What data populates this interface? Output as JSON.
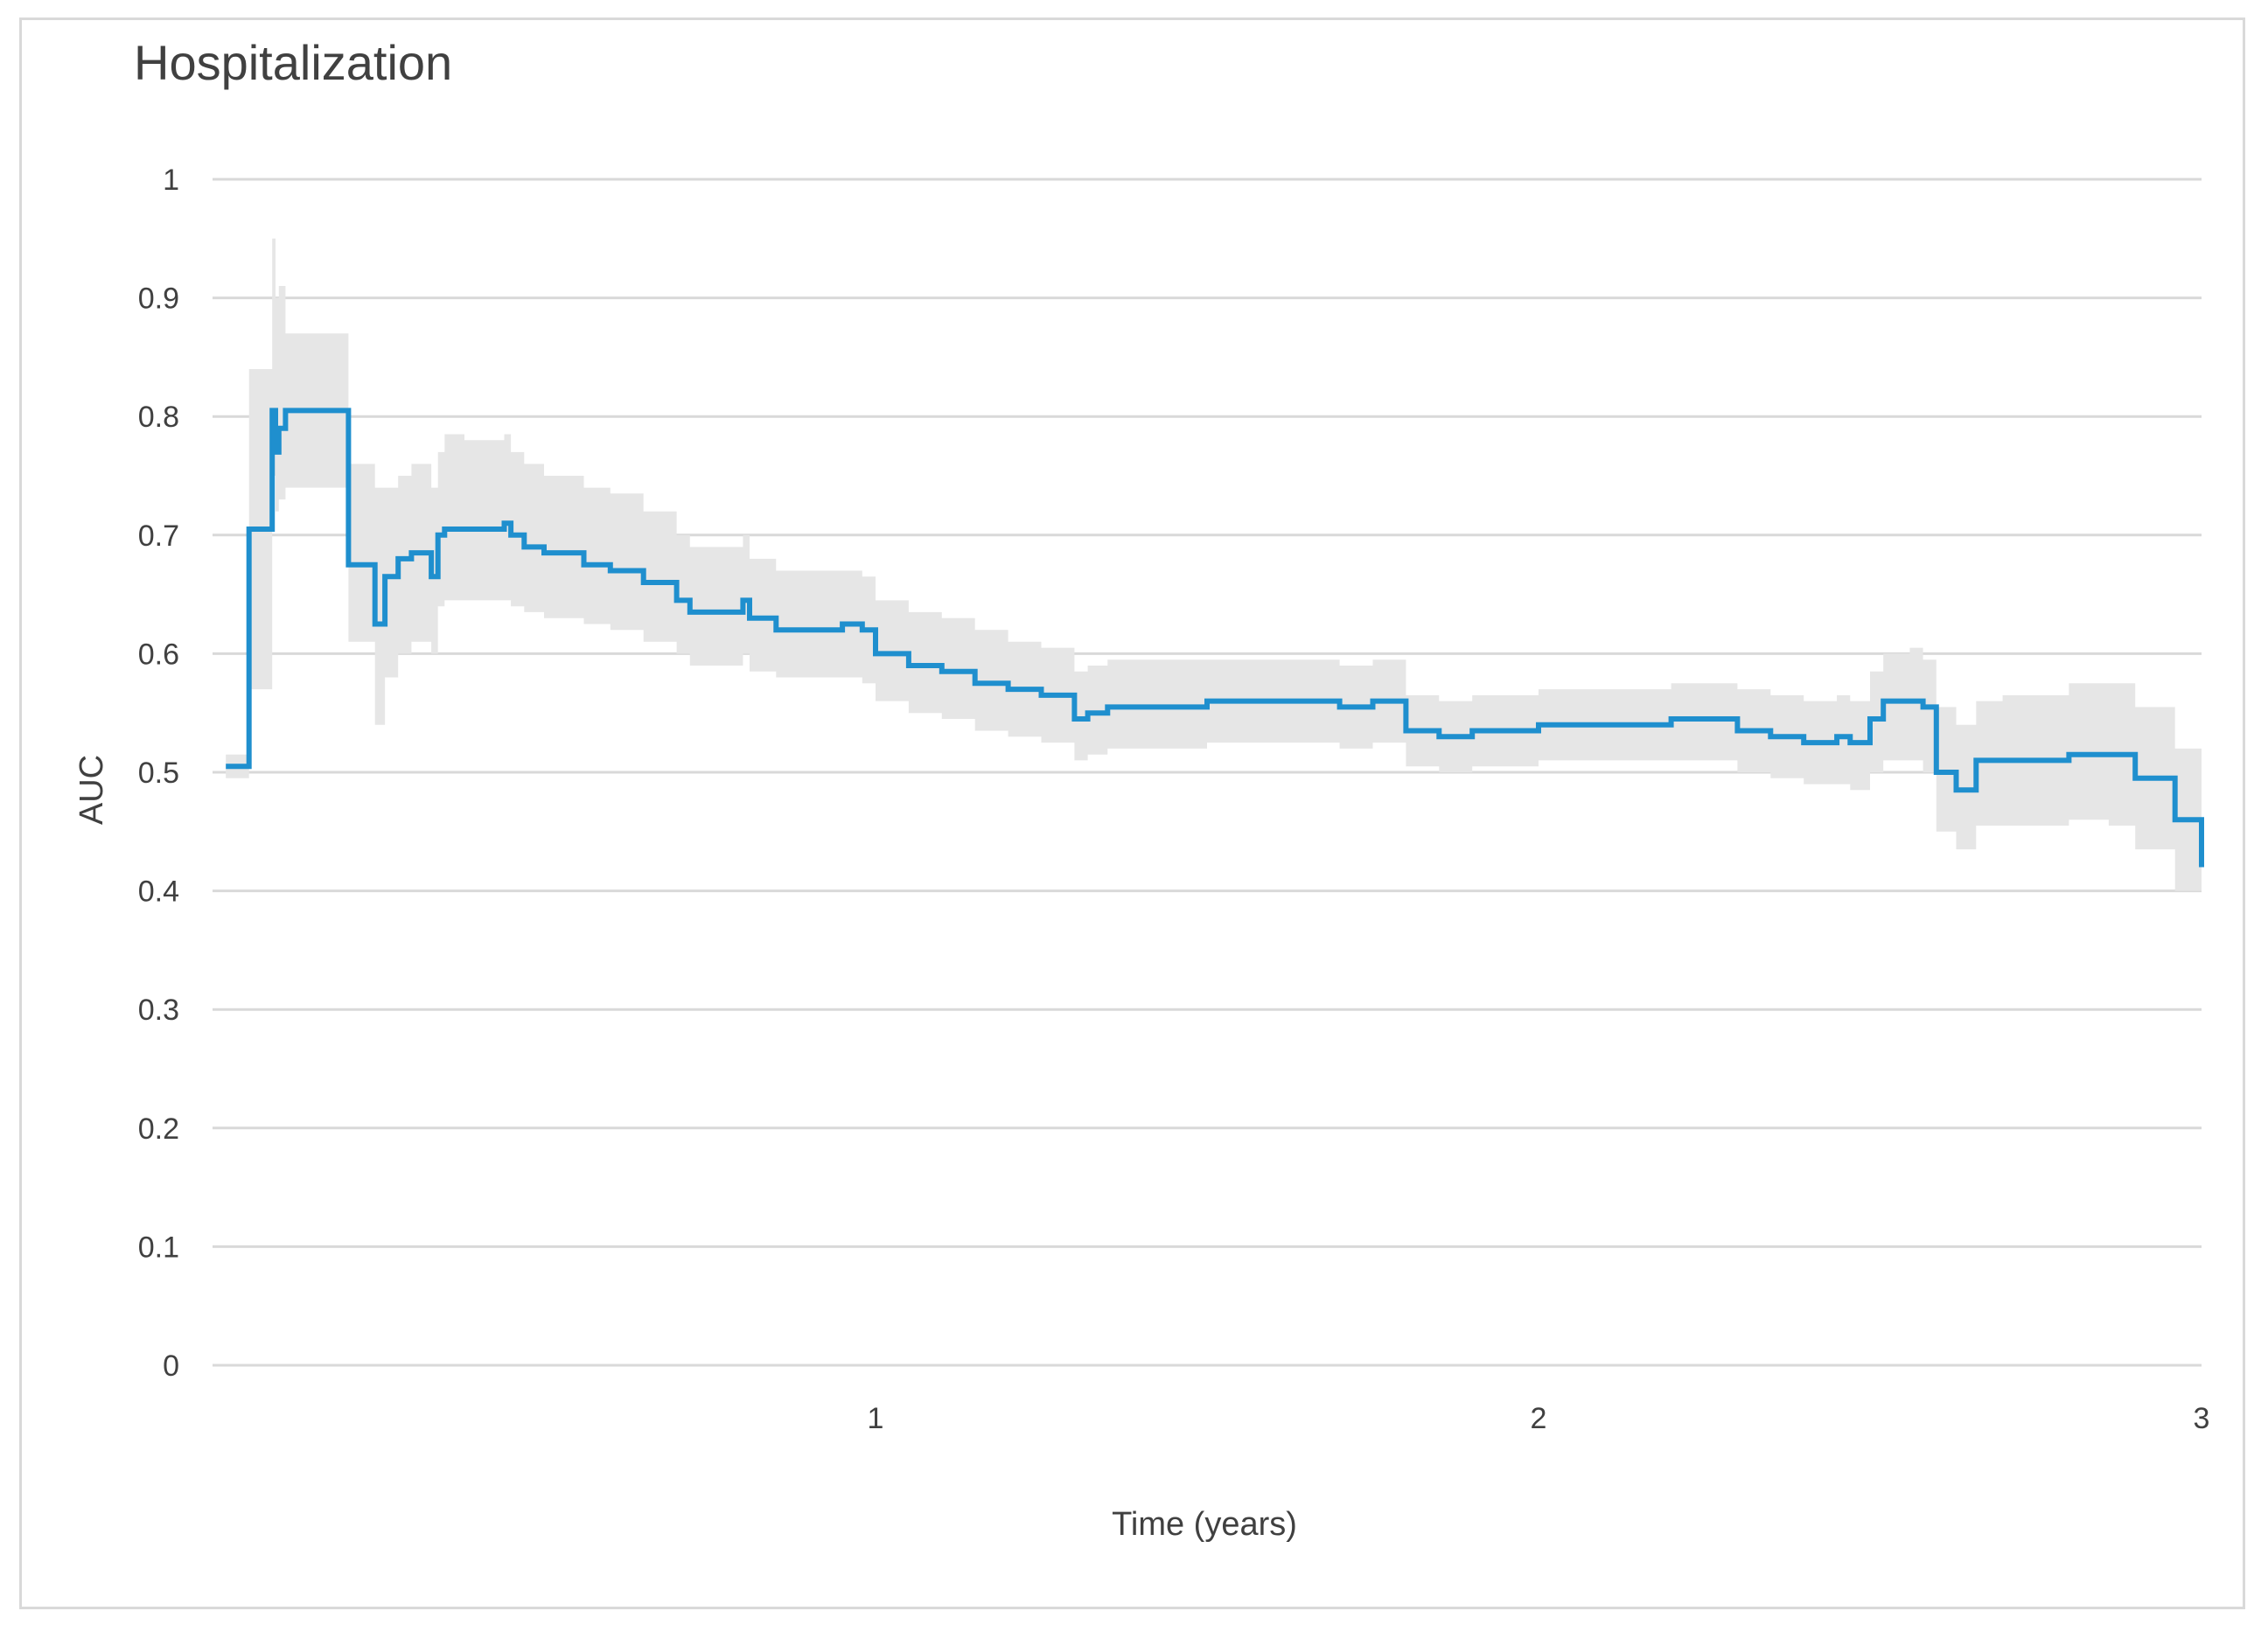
{
  "chart_data": {
    "type": "line",
    "title": "Hospitalization",
    "xlabel": "Time (years)",
    "ylabel": "AUC",
    "xlim": [
      0,
      3
    ],
    "ylim": [
      0,
      1
    ],
    "x_ticks": [
      1,
      2,
      3
    ],
    "y_ticks": [
      0,
      0.1,
      0.2,
      0.3,
      0.4,
      0.5,
      0.6,
      0.7,
      0.8,
      0.9,
      1
    ],
    "grid": "horizontal",
    "legend": "none",
    "colors": {
      "line": "#1f8fce",
      "band": "#e6e6e6",
      "grid": "#d9d9d9"
    },
    "series": [
      {
        "style": "step",
        "x": [
          0.02,
          0.05,
          0.055,
          0.08,
          0.09,
          0.095,
          0.1,
          0.11,
          0.12,
          0.2,
          0.205,
          0.24,
          0.245,
          0.26,
          0.28,
          0.3,
          0.33,
          0.34,
          0.35,
          0.38,
          0.4,
          0.44,
          0.45,
          0.47,
          0.5,
          0.56,
          0.6,
          0.65,
          0.7,
          0.72,
          0.75,
          0.8,
          0.81,
          0.85,
          0.88,
          0.92,
          0.95,
          0.98,
          1.0,
          1.05,
          1.1,
          1.15,
          1.2,
          1.25,
          1.3,
          1.32,
          1.35,
          1.4,
          1.5,
          1.6,
          1.7,
          1.75,
          1.8,
          1.85,
          1.9,
          2.0,
          2.1,
          2.2,
          2.3,
          2.35,
          2.4,
          2.45,
          2.47,
          2.5,
          2.52,
          2.56,
          2.58,
          2.6,
          2.63,
          2.66,
          2.7,
          2.8,
          2.86,
          2.9,
          2.96,
          3.0
        ],
        "y": [
          0.505,
          0.505,
          0.705,
          0.705,
          0.805,
          0.77,
          0.79,
          0.805,
          0.805,
          0.805,
          0.675,
          0.675,
          0.625,
          0.665,
          0.68,
          0.685,
          0.665,
          0.7,
          0.705,
          0.705,
          0.705,
          0.71,
          0.7,
          0.69,
          0.685,
          0.675,
          0.67,
          0.66,
          0.645,
          0.635,
          0.635,
          0.645,
          0.63,
          0.62,
          0.62,
          0.62,
          0.625,
          0.62,
          0.6,
          0.59,
          0.585,
          0.575,
          0.57,
          0.565,
          0.545,
          0.55,
          0.555,
          0.555,
          0.56,
          0.56,
          0.555,
          0.56,
          0.535,
          0.53,
          0.535,
          0.54,
          0.54,
          0.545,
          0.535,
          0.53,
          0.525,
          0.53,
          0.525,
          0.545,
          0.56,
          0.56,
          0.555,
          0.5,
          0.485,
          0.51,
          0.51,
          0.515,
          0.515,
          0.495,
          0.46,
          0.42
        ],
        "lower": [
          0.495,
          0.495,
          0.57,
          0.57,
          0.75,
          0.72,
          0.73,
          0.74,
          0.74,
          0.74,
          0.61,
          0.61,
          0.54,
          0.58,
          0.6,
          0.61,
          0.6,
          0.64,
          0.645,
          0.645,
          0.645,
          0.645,
          0.64,
          0.635,
          0.63,
          0.625,
          0.62,
          0.61,
          0.6,
          0.59,
          0.59,
          0.6,
          0.585,
          0.58,
          0.58,
          0.58,
          0.58,
          0.575,
          0.56,
          0.55,
          0.545,
          0.535,
          0.53,
          0.525,
          0.51,
          0.515,
          0.52,
          0.52,
          0.525,
          0.525,
          0.52,
          0.525,
          0.505,
          0.5,
          0.505,
          0.51,
          0.51,
          0.51,
          0.5,
          0.495,
          0.49,
          0.49,
          0.485,
          0.5,
          0.51,
          0.51,
          0.5,
          0.45,
          0.435,
          0.455,
          0.455,
          0.46,
          0.455,
          0.435,
          0.4,
          0.365
        ],
        "upper": [
          0.515,
          0.515,
          0.84,
          0.84,
          0.95,
          0.9,
          0.91,
          0.87,
          0.87,
          0.87,
          0.76,
          0.76,
          0.74,
          0.74,
          0.75,
          0.76,
          0.74,
          0.77,
          0.785,
          0.78,
          0.78,
          0.785,
          0.77,
          0.76,
          0.75,
          0.74,
          0.735,
          0.72,
          0.7,
          0.69,
          0.69,
          0.7,
          0.68,
          0.67,
          0.67,
          0.67,
          0.67,
          0.665,
          0.645,
          0.635,
          0.63,
          0.62,
          0.61,
          0.605,
          0.585,
          0.59,
          0.595,
          0.595,
          0.595,
          0.595,
          0.59,
          0.595,
          0.565,
          0.56,
          0.565,
          0.57,
          0.57,
          0.575,
          0.57,
          0.565,
          0.56,
          0.565,
          0.56,
          0.585,
          0.6,
          0.605,
          0.595,
          0.555,
          0.54,
          0.56,
          0.565,
          0.575,
          0.575,
          0.555,
          0.52,
          0.49
        ]
      }
    ]
  }
}
